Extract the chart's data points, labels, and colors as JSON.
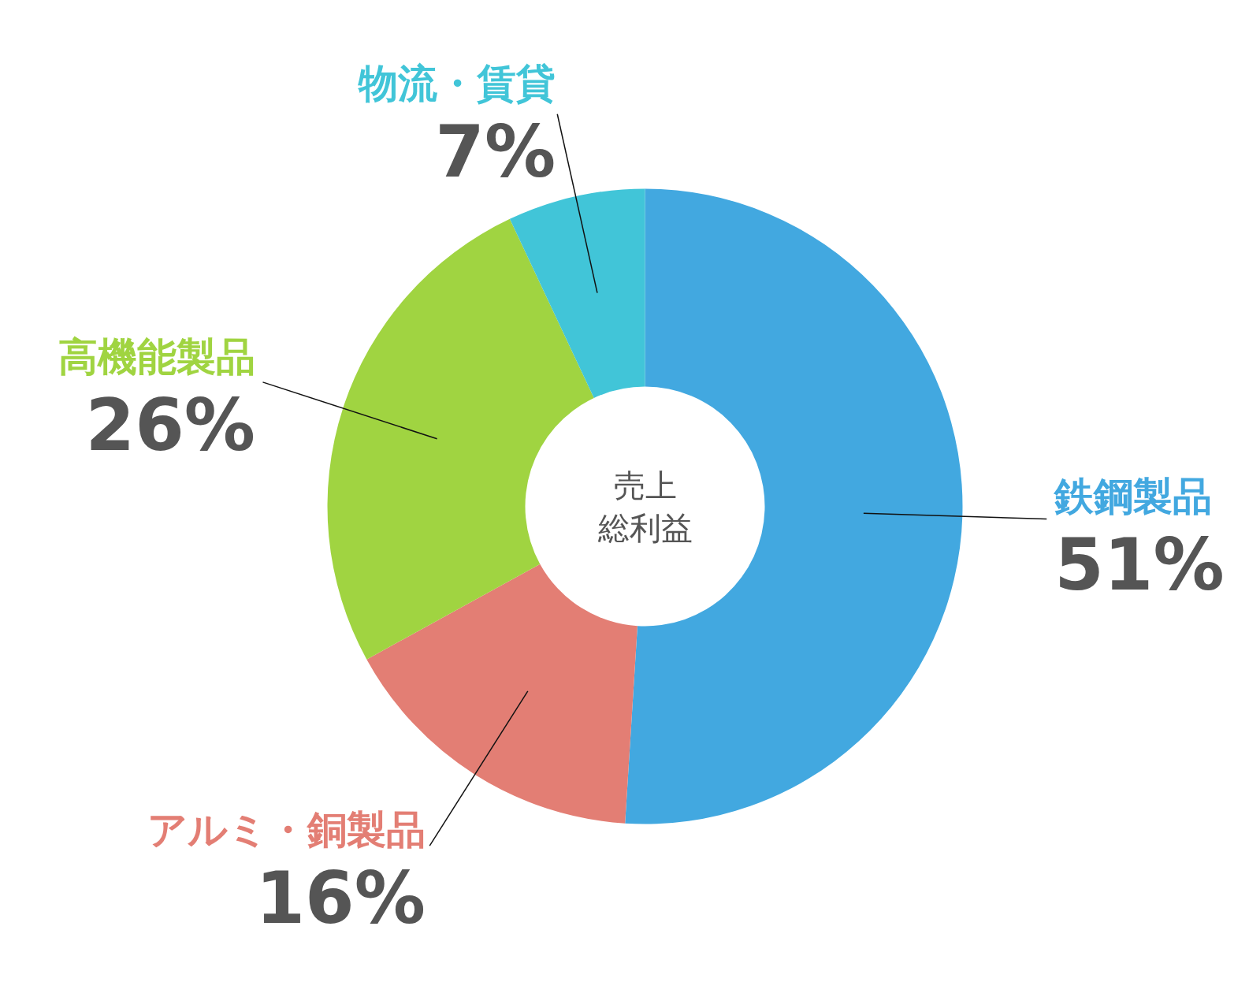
{
  "chart_data": {
    "type": "donut",
    "annotations": [
      "売上",
      "総利益"
    ],
    "categories": [
      "鉄鋼製品",
      "アルミ・銅製品",
      "高機能製品",
      "物流・賃貸"
    ],
    "values": [
      51,
      16,
      26,
      7
    ],
    "value_labels": [
      "51%",
      "16%",
      "26%",
      "7%"
    ],
    "colors": [
      "#42a8e0",
      "#e37e74",
      "#a0d441",
      "#41c5d8"
    ]
  }
}
